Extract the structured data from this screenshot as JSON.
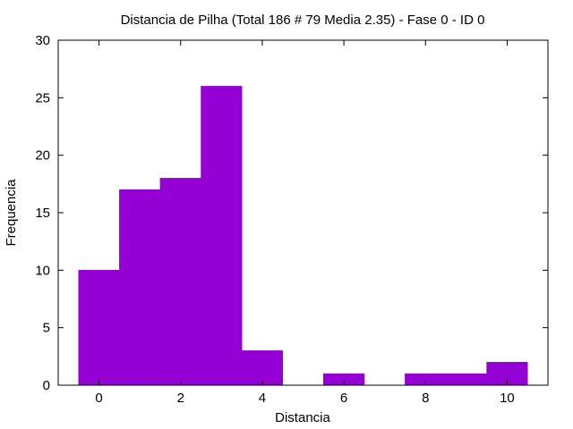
{
  "chart_data": {
    "type": "bar",
    "title": "Distancia de Pilha (Total 186 # 79 Media 2.35) - Fase  0 - ID 0",
    "xlabel": "Distancia",
    "ylabel": "Frequencia",
    "x": [
      0,
      1,
      2,
      3,
      4,
      5,
      6,
      7,
      8,
      9,
      10
    ],
    "values": [
      10,
      17,
      18,
      26,
      3,
      0,
      1,
      0,
      1,
      1,
      2
    ],
    "xlim": [
      -1,
      11
    ],
    "ylim": [
      0,
      30
    ],
    "xticks": [
      "0",
      "2",
      "4",
      "6",
      "8",
      "10"
    ],
    "yticks": [
      "0",
      "5",
      "10",
      "15",
      "20",
      "25",
      "30"
    ],
    "grid": false,
    "bar_color": "#9400d3"
  }
}
